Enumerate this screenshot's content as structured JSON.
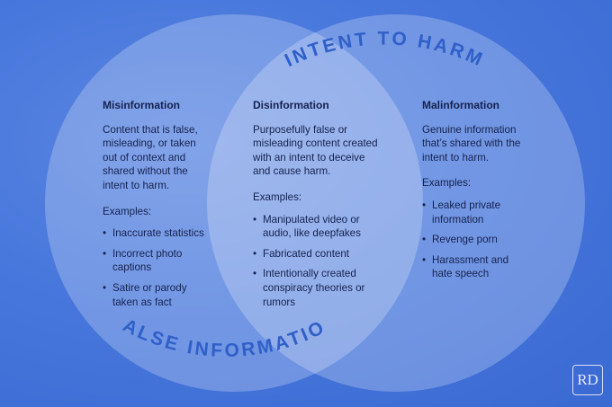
{
  "labels": {
    "top_arc": "INTENT TO HARM",
    "bottom_arc": "FALSE INFORMATION"
  },
  "misinformation": {
    "title": "Misinformation",
    "description": "Content that is false, misleading, or taken out of context and shared without the intent to harm.",
    "examples_label": "Examples:",
    "examples": [
      "Inaccurate statistics",
      "Incorrect photo captions",
      "Satire or parody taken as fact"
    ]
  },
  "disinformation": {
    "title": "Disinformation",
    "description": "Purposefully false or misleading content created with an intent to deceive and cause harm.",
    "examples_label": "Examples:",
    "examples": [
      "Manipulated video or audio, like deepfakes",
      "Fabricated content",
      "Intentionally created conspiracy theories or rumors"
    ]
  },
  "malinformation": {
    "title": "Malinformation",
    "description": "Genuine information that’s shared with the intent to harm.",
    "examples_label": "Examples:",
    "examples": [
      "Leaked private information",
      "Revenge porn",
      "Harassment and hate speech"
    ]
  },
  "logo": "RD",
  "colors": {
    "background": "#4777dc",
    "text": "#15224f",
    "arc_text": "#2f5fc8",
    "circle_fill": "#ffffff"
  }
}
